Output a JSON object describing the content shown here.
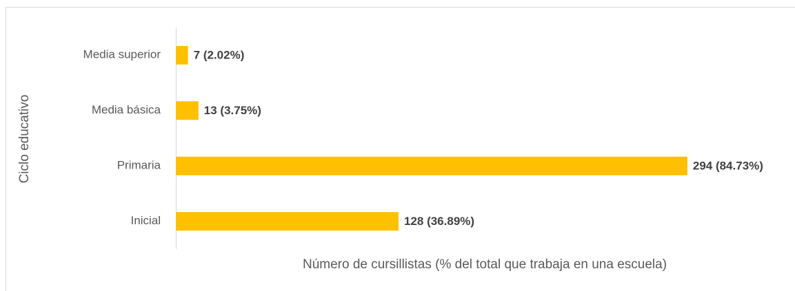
{
  "chart_data": {
    "type": "barh",
    "ylabel": "Ciclo educativo",
    "xlabel": "Número de cursillistas (% del total que trabaja en una escuela)",
    "categories": [
      "Inicial",
      "Primaria",
      "Media básica",
      "Media superior"
    ],
    "values": [
      128,
      294,
      13,
      7
    ],
    "value_labels": [
      "128 (36.89%)",
      "294 (84.73%)",
      "13 (3.75%)",
      "7 (2.02%)"
    ],
    "color": "#ffc000",
    "xlim": [
      0,
      300
    ]
  }
}
